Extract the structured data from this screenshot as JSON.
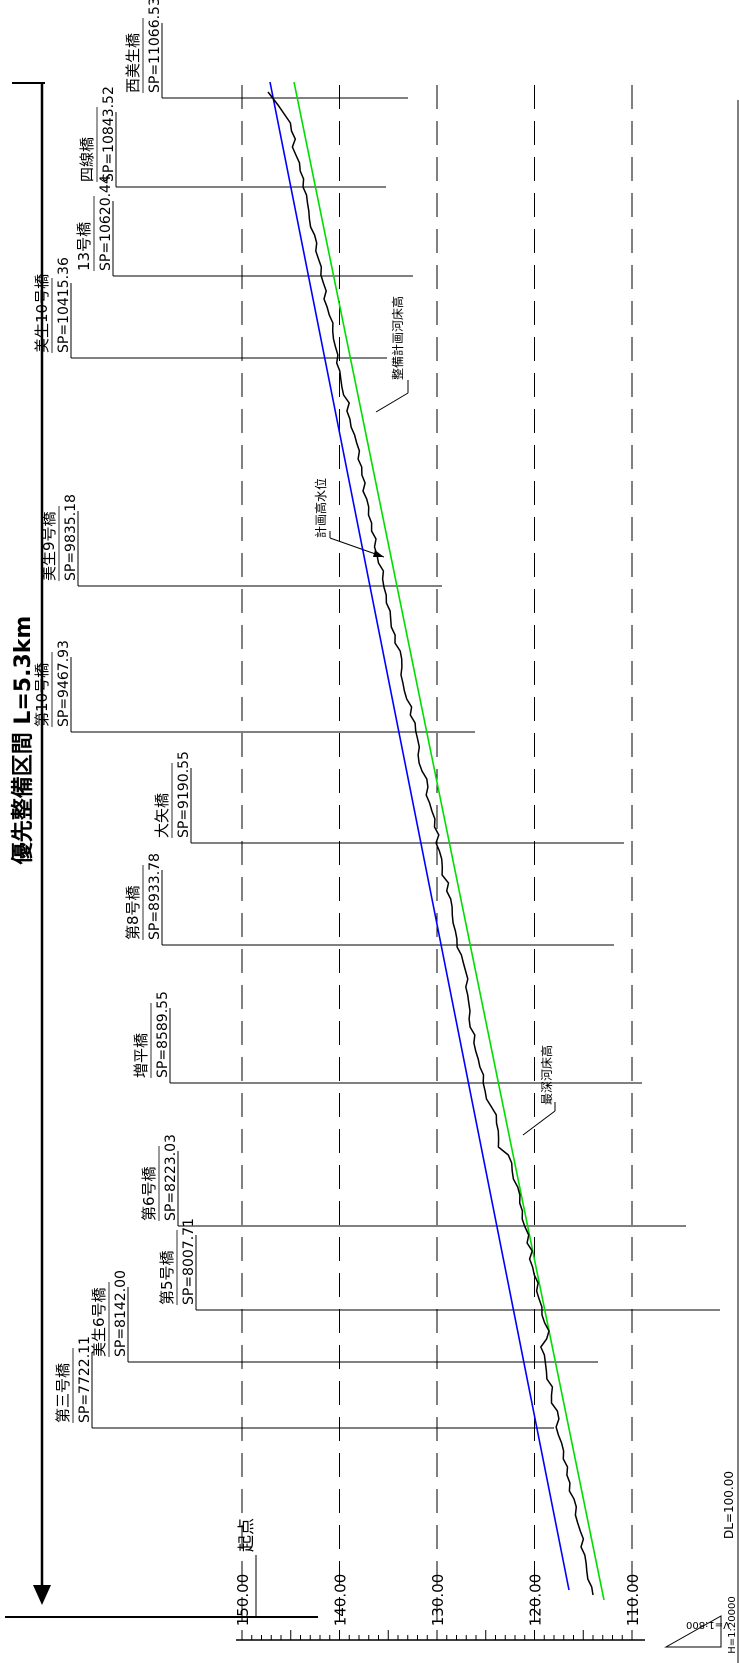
{
  "title": "優先整備区間 L=5.3km",
  "start_label": "起点",
  "datum_label": "DL=100.00",
  "scale_h": "H=1:20000",
  "scale_v": "V=1:800",
  "elevation_ticks": [
    "150.00",
    "140.00",
    "130.00",
    "120.00",
    "110.00"
  ],
  "annotations": {
    "planned_bed": "整備計画河床高",
    "planned_water": "計画高水位",
    "deepest_bed": "最深河床高"
  },
  "colors": {
    "planned_water": "#0000ff",
    "planned_bed": "#00dd00",
    "deepest_bed": "#000000",
    "grid": "#000000"
  },
  "bridges": [
    {
      "name": "第三号橋",
      "sp": "SP=7722.11"
    },
    {
      "name": "美生6号橋",
      "sp": "SP=8142.00"
    },
    {
      "name": "第5号橋",
      "sp": "SP=8007.71"
    },
    {
      "name": "第6号橋",
      "sp": "SP=8223.03"
    },
    {
      "name": "増平橋",
      "sp": "SP=8589.55"
    },
    {
      "name": "第8号橋",
      "sp": "SP=8933.78"
    },
    {
      "name": "大矢橋",
      "sp": "SP=9190.55"
    },
    {
      "name": "第10号橋",
      "sp": "SP=9467.93"
    },
    {
      "name": "美生9号橋",
      "sp": "SP=9835.18"
    },
    {
      "name": "美生10号橋",
      "sp": "SP=10415.36"
    },
    {
      "name": "13号橋",
      "sp": "SP=10620.44"
    },
    {
      "name": "四線橋",
      "sp": "SP=10843.52"
    },
    {
      "name": "西美生橋",
      "sp": "SP=11066.53"
    }
  ]
}
